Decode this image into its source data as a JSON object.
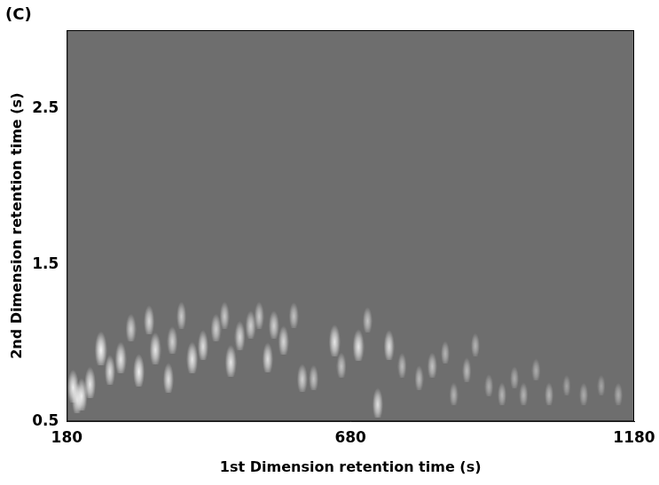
{
  "chart_data": {
    "type": "scatter",
    "title": "(C)",
    "x_label": "1st Dimension retention time (s)",
    "y_label": "2nd Dimension retention time (s)",
    "xlim": [
      180,
      1180
    ],
    "xticks": [
      180,
      680,
      1180
    ],
    "ylim": [
      0.5,
      3.0
    ],
    "yticks": [
      0.5,
      1.5,
      2.5
    ],
    "grid": false,
    "color": "#ffffff",
    "x": [
      191,
      198,
      206,
      221,
      240,
      256,
      275,
      293,
      307,
      325,
      336,
      359,
      366,
      382,
      401,
      420,
      443,
      458,
      469,
      485,
      504,
      519,
      534,
      545,
      562,
      580,
      595,
      615,
      652,
      664,
      694,
      710,
      728,
      748,
      771,
      801,
      824,
      847,
      862,
      885,
      900,
      924,
      947,
      969,
      985,
      1007,
      1030,
      1061,
      1091,
      1122,
      1152
    ],
    "y": [
      0.74,
      0.66,
      0.685,
      0.76,
      0.98,
      0.84,
      0.92,
      1.11,
      0.84,
      1.16,
      0.98,
      0.79,
      1.03,
      1.19,
      0.92,
      1.0,
      1.11,
      1.19,
      0.9,
      1.06,
      1.13,
      1.19,
      0.92,
      1.13,
      1.03,
      1.19,
      0.79,
      0.79,
      1.03,
      0.87,
      1.0,
      1.16,
      0.63,
      1.0,
      0.87,
      0.79,
      0.87,
      0.95,
      0.685,
      0.84,
      1.0,
      0.74,
      0.685,
      0.79,
      0.685,
      0.84,
      0.685,
      0.74,
      0.685,
      0.74,
      0.685
    ],
    "intensity": [
      0.9,
      0.8,
      0.9,
      0.85,
      0.95,
      0.8,
      0.85,
      0.7,
      0.9,
      0.75,
      0.85,
      0.8,
      0.7,
      0.65,
      0.85,
      0.8,
      0.7,
      0.65,
      0.85,
      0.75,
      0.7,
      0.65,
      0.8,
      0.7,
      0.75,
      0.6,
      0.7,
      0.6,
      0.85,
      0.6,
      0.85,
      0.6,
      0.8,
      0.8,
      0.55,
      0.55,
      0.6,
      0.5,
      0.5,
      0.55,
      0.5,
      0.45,
      0.5,
      0.45,
      0.5,
      0.45,
      0.5,
      0.4,
      0.45,
      0.4,
      0.45
    ]
  }
}
